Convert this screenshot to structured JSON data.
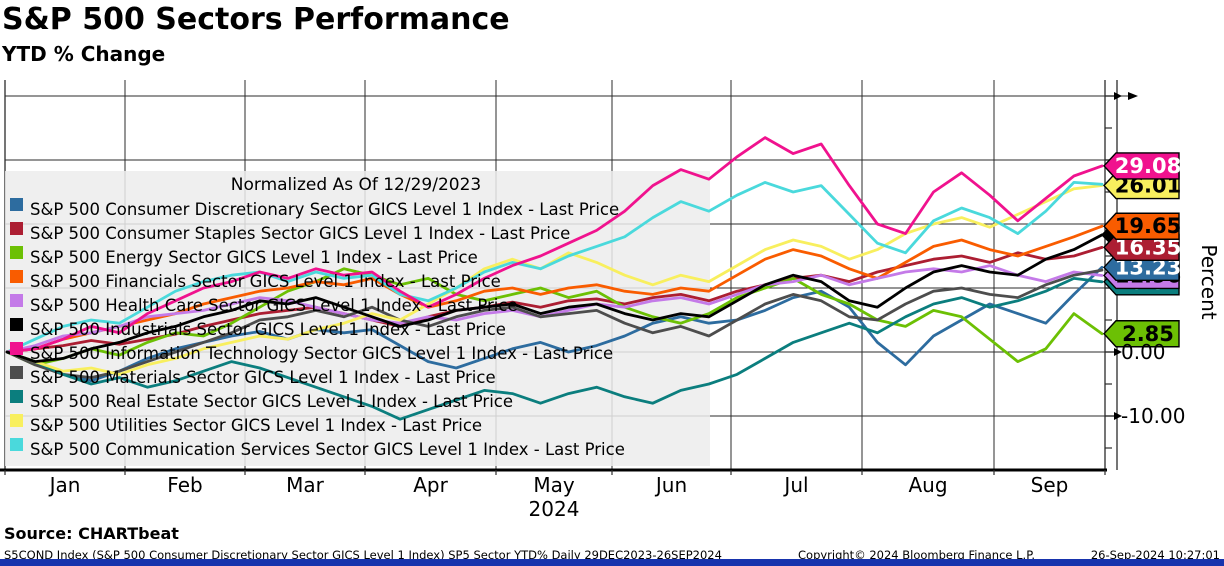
{
  "header": {
    "title": "S&P 500 Sectors Performance",
    "subtitle": "YTD % Change"
  },
  "chart_data": {
    "type": "line",
    "title": "S&P 500 Sectors Performance",
    "subtitle": "YTD % Change",
    "normalized_note": "Normalized As Of 12/29/2023",
    "ylabel": "Percent",
    "ylim": [
      -18,
      42
    ],
    "grid": true,
    "yticks_major": [
      40,
      30,
      20,
      10,
      0,
      -10
    ],
    "yticks_minor": [
      35,
      25,
      15,
      5,
      -5,
      -15
    ],
    "ytick_labels_visible": [
      "0.00",
      "-10.00"
    ],
    "x_months": [
      "Jan",
      "Feb",
      "Mar",
      "Apr",
      "May",
      "Jun",
      "Jul",
      "Aug",
      "Sep"
    ],
    "x_year": "2024",
    "date_range": "29DEC2023-26SEP2024",
    "series": [
      {
        "name": "consumer-discretionary",
        "label": "S&P 500 Consumer Discretionary Sector GICS Level 1 Index - Last Price",
        "color": "#2d6c9f",
        "tag": "13.23",
        "tag_text_color": "#ffffff",
        "values": [
          0,
          -1.5,
          -3.5,
          -4.5,
          -3.0,
          -1.0,
          0.5,
          1.5,
          2.5,
          3.2,
          2.0,
          3.5,
          3.0,
          3.5,
          1.0,
          -1.5,
          -2.5,
          -1.0,
          0.5,
          1.5,
          0.0,
          1.0,
          2.5,
          4.5,
          5.5,
          4.5,
          5.0,
          6.5,
          8.5,
          9.5,
          7.0,
          1.5,
          -2.0,
          2.5,
          5.0,
          7.5,
          6.0,
          4.5,
          9.0,
          13.23
        ]
      },
      {
        "name": "consumer-staples",
        "label": "S&P 500 Consumer Staples Sector GICS Level 1 Index - Last Price",
        "color": "#ac1e32",
        "tag": "16.35",
        "tag_text_color": "#ffffff",
        "values": [
          0,
          0.5,
          1.0,
          1.8,
          1.2,
          2.0,
          2.8,
          4.0,
          5.0,
          6.0,
          6.5,
          7.0,
          6.0,
          5.0,
          4.0,
          5.5,
          6.5,
          7.0,
          7.8,
          7.0,
          8.0,
          8.3,
          7.5,
          8.5,
          9.0,
          8.0,
          9.5,
          10.5,
          11.5,
          12.0,
          11.0,
          12.5,
          13.5,
          14.5,
          15.0,
          14.0,
          15.5,
          14.5,
          15.0,
          16.35
        ]
      },
      {
        "name": "energy",
        "label": "S&P 500 Energy Sector GICS Level 1 Index - Last Price",
        "color": "#6cc004",
        "tag": "2.85",
        "tag_text_color": "#000000",
        "values": [
          0,
          -2.0,
          -1.0,
          0.5,
          -0.5,
          1.5,
          3.0,
          2.5,
          4.5,
          7.0,
          9.5,
          11.0,
          13.0,
          12.0,
          10.5,
          11.5,
          9.0,
          8.0,
          9.0,
          10.0,
          8.5,
          9.5,
          7.0,
          5.5,
          4.5,
          6.0,
          8.5,
          10.0,
          11.5,
          9.0,
          7.5,
          5.0,
          4.0,
          6.5,
          5.5,
          2.0,
          -1.5,
          0.5,
          6.0,
          2.85
        ]
      },
      {
        "name": "financials",
        "label": "S&P 500 Financials Sector GICS Level 1 Index - Last Price",
        "color": "#f95c00",
        "tag": "19.65",
        "tag_text_color": "#000000",
        "values": [
          0,
          0.5,
          2.0,
          3.0,
          4.0,
          5.0,
          6.0,
          7.5,
          8.5,
          9.5,
          10.0,
          11.0,
          10.5,
          11.5,
          9.0,
          7.0,
          8.0,
          9.5,
          10.0,
          9.0,
          10.0,
          10.5,
          9.5,
          9.0,
          10.0,
          9.5,
          12.0,
          14.5,
          16.0,
          15.0,
          13.0,
          11.5,
          14.0,
          16.5,
          17.5,
          16.0,
          15.0,
          16.5,
          18.0,
          19.65
        ]
      },
      {
        "name": "health-care",
        "label": "S&P 500 Health Care Sector GICS Level 1 Index - Last Price",
        "color": "#c47ae8",
        "tag": "11.96",
        "tag_text_color": "#000000",
        "values": [
          0,
          1.0,
          2.5,
          3.0,
          4.0,
          5.5,
          6.0,
          6.5,
          7.5,
          8.5,
          8.0,
          7.0,
          6.0,
          5.0,
          4.5,
          5.5,
          5.0,
          6.0,
          6.5,
          5.5,
          6.5,
          7.5,
          7.0,
          8.0,
          8.5,
          7.5,
          9.0,
          10.5,
          11.0,
          12.0,
          10.5,
          11.5,
          12.5,
          13.0,
          12.5,
          13.5,
          12.0,
          11.0,
          12.5,
          11.96
        ]
      },
      {
        "name": "industrials",
        "label": "S&P 500 Industrials Sector GICS Level 1 Index - Last Price",
        "color": "#000000",
        "tag": "",
        "tag_text_color": "#ffffff",
        "values": [
          0,
          -1.5,
          -1.0,
          0.5,
          1.5,
          3.0,
          4.0,
          5.5,
          6.5,
          8.0,
          7.5,
          8.5,
          7.0,
          5.5,
          4.0,
          5.0,
          6.5,
          7.0,
          7.5,
          6.0,
          7.0,
          7.5,
          6.0,
          5.0,
          6.0,
          5.5,
          8.0,
          10.5,
          12.0,
          11.0,
          8.0,
          7.0,
          10.0,
          12.5,
          13.5,
          12.5,
          12.0,
          14.5,
          16.0,
          18.3
        ]
      },
      {
        "name": "information-technology",
        "label": "S&P 500 Information Technology Sector GICS Level 1 Index - Last Price",
        "color": "#f0128e",
        "tag": "29.08",
        "tag_text_color": "#ffffff",
        "values": [
          0,
          0.5,
          2.0,
          4.0,
          3.0,
          6.0,
          8.0,
          10.0,
          11.0,
          12.5,
          11.5,
          13.0,
          12.0,
          12.5,
          9.5,
          7.0,
          9.0,
          11.5,
          13.5,
          15.0,
          17.0,
          19.0,
          22.0,
          26.0,
          28.5,
          27.0,
          30.5,
          33.5,
          31.0,
          32.5,
          26.0,
          20.0,
          18.5,
          25.0,
          28.0,
          24.5,
          20.5,
          24.0,
          27.5,
          29.08
        ]
      },
      {
        "name": "materials",
        "label": "S&P 500 Materials Sector GICS Level 1 Index - Last Price",
        "color": "#4d4d4d",
        "tag": null,
        "tag_text_color": "#ffffff",
        "values": [
          0,
          -2.0,
          -3.5,
          -4.0,
          -3.0,
          -1.5,
          0.0,
          1.5,
          3.0,
          5.0,
          5.5,
          6.5,
          5.5,
          7.0,
          5.0,
          4.0,
          5.5,
          6.5,
          7.0,
          5.5,
          6.0,
          6.5,
          4.5,
          3.0,
          4.0,
          2.5,
          5.0,
          7.5,
          9.0,
          8.0,
          5.5,
          5.0,
          7.5,
          9.5,
          10.0,
          9.0,
          8.5,
          10.5,
          12.0,
          12.8
        ]
      },
      {
        "name": "real-estate",
        "label": "S&P 500 Real Estate Sector GICS Level 1 Index - Last Price",
        "color": "#0b7e7e",
        "tag": "10.97",
        "tag_text_color": "#ffffff",
        "values": [
          0,
          -1.5,
          -3.5,
          -5.0,
          -4.0,
          -5.5,
          -4.5,
          -3.0,
          -1.5,
          -2.5,
          -4.0,
          -5.5,
          -7.0,
          -8.5,
          -10.5,
          -9.0,
          -7.5,
          -6.0,
          -6.5,
          -8.0,
          -6.5,
          -5.5,
          -7.0,
          -8.0,
          -6.0,
          -5.0,
          -3.5,
          -1.0,
          1.5,
          3.0,
          4.5,
          3.0,
          5.5,
          7.5,
          8.5,
          7.0,
          8.0,
          9.5,
          11.5,
          10.97
        ]
      },
      {
        "name": "utilities",
        "label": "S&P 500 Utilities Sector GICS Level 1 Index - Last Price",
        "color": "#f8ef5e",
        "tag": "26.01",
        "tag_text_color": "#000000",
        "values": [
          0,
          -1.5,
          -3.0,
          -2.5,
          -3.5,
          -2.0,
          -1.0,
          0.5,
          1.5,
          2.5,
          2.0,
          3.5,
          4.5,
          6.0,
          5.0,
          7.5,
          10.0,
          13.0,
          14.5,
          13.0,
          15.5,
          14.0,
          12.0,
          10.5,
          12.0,
          11.0,
          13.5,
          16.0,
          17.5,
          16.5,
          14.5,
          16.0,
          18.5,
          20.0,
          21.0,
          19.5,
          21.5,
          23.5,
          25.5,
          26.01
        ]
      },
      {
        "name": "communication-services",
        "label": "S&P 500 Communication Services Sector GICS Level 1 Index - Last Price",
        "color": "#4ad9dc",
        "tag": null,
        "tag_text_color": "#000000",
        "values": [
          0,
          2.0,
          4.0,
          5.0,
          4.5,
          7.0,
          9.5,
          11.0,
          12.0,
          12.5,
          11.0,
          12.5,
          11.5,
          12.0,
          9.0,
          8.0,
          10.0,
          12.5,
          14.0,
          13.0,
          15.0,
          16.5,
          18.0,
          21.0,
          23.5,
          22.0,
          24.5,
          26.5,
          25.0,
          26.0,
          21.5,
          17.0,
          15.5,
          20.5,
          22.5,
          21.0,
          18.5,
          22.0,
          26.5,
          26.2
        ]
      }
    ]
  },
  "footer": {
    "source": "Source: CHARTbeat",
    "ticker_info": "S5COND Index (S&P 500 Consumer Discretionary Sector GICS Level 1 Index) SP5 Sector YTD%  Daily 29DEC2023-26SEP2024",
    "copyright": "Copyright© 2024 Bloomberg Finance L.P.",
    "timestamp": "26-Sep-2024 10:27:01"
  }
}
